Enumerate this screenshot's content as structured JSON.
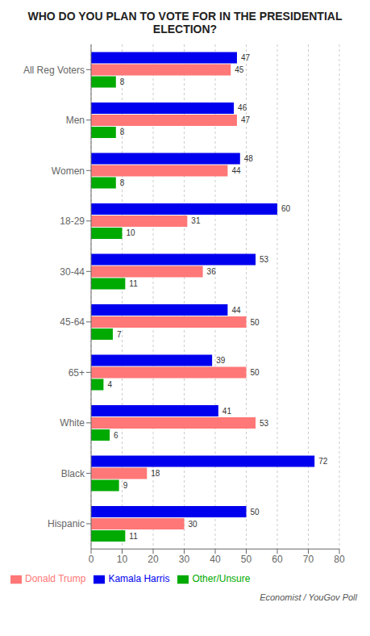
{
  "chart_data": {
    "type": "bar",
    "orientation": "horizontal",
    "title": "WHO DO YOU PLAN TO VOTE FOR IN THE PRESIDENTIAL ELECTION?",
    "categories": [
      "All Reg Voters",
      "Men",
      "Women",
      "18-29",
      "30-44",
      "45-64",
      "65+",
      "White",
      "Black",
      "Hispanic"
    ],
    "series": [
      {
        "name": "Kamala Harris",
        "color": "#0000ee",
        "values": [
          47,
          46,
          48,
          60,
          53,
          44,
          39,
          41,
          72,
          50
        ]
      },
      {
        "name": "Donald Trump",
        "color": "#ff7777",
        "values": [
          45,
          47,
          44,
          31,
          36,
          50,
          50,
          53,
          18,
          30
        ]
      },
      {
        "name": "Other/Unsure",
        "color": "#00aa00",
        "values": [
          8,
          8,
          8,
          10,
          11,
          7,
          4,
          6,
          9,
          11
        ]
      }
    ],
    "xlim": [
      0,
      80
    ],
    "xticks": [
      0,
      10,
      20,
      30,
      40,
      50,
      60,
      70,
      80
    ],
    "grid": true,
    "data_labels": true,
    "legend": "lower left",
    "annotations": [
      "Economist / YouGov Poll"
    ]
  }
}
